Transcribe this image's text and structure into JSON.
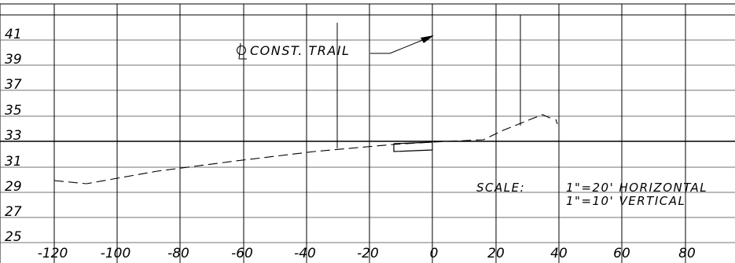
{
  "drawing": {
    "colors": {
      "background": "#ffffff",
      "linework": "#000000"
    },
    "elevation_labels": [
      "41",
      "39",
      "37",
      "35",
      "33",
      "31",
      "29",
      "27",
      "25"
    ],
    "station_labels": [
      "-120",
      "-100",
      "-80",
      "-60",
      "-40",
      "-20",
      "0",
      "20",
      "40",
      "60",
      "80"
    ],
    "centerline_label": "CONST. TRAIL",
    "centerline_symbol": "centerline-symbol",
    "scale_label": "SCALE:",
    "scale_horizontal": "1\"=20' HORIZONTAL",
    "scale_vertical": "1\"=10' VERTICAL"
  }
}
